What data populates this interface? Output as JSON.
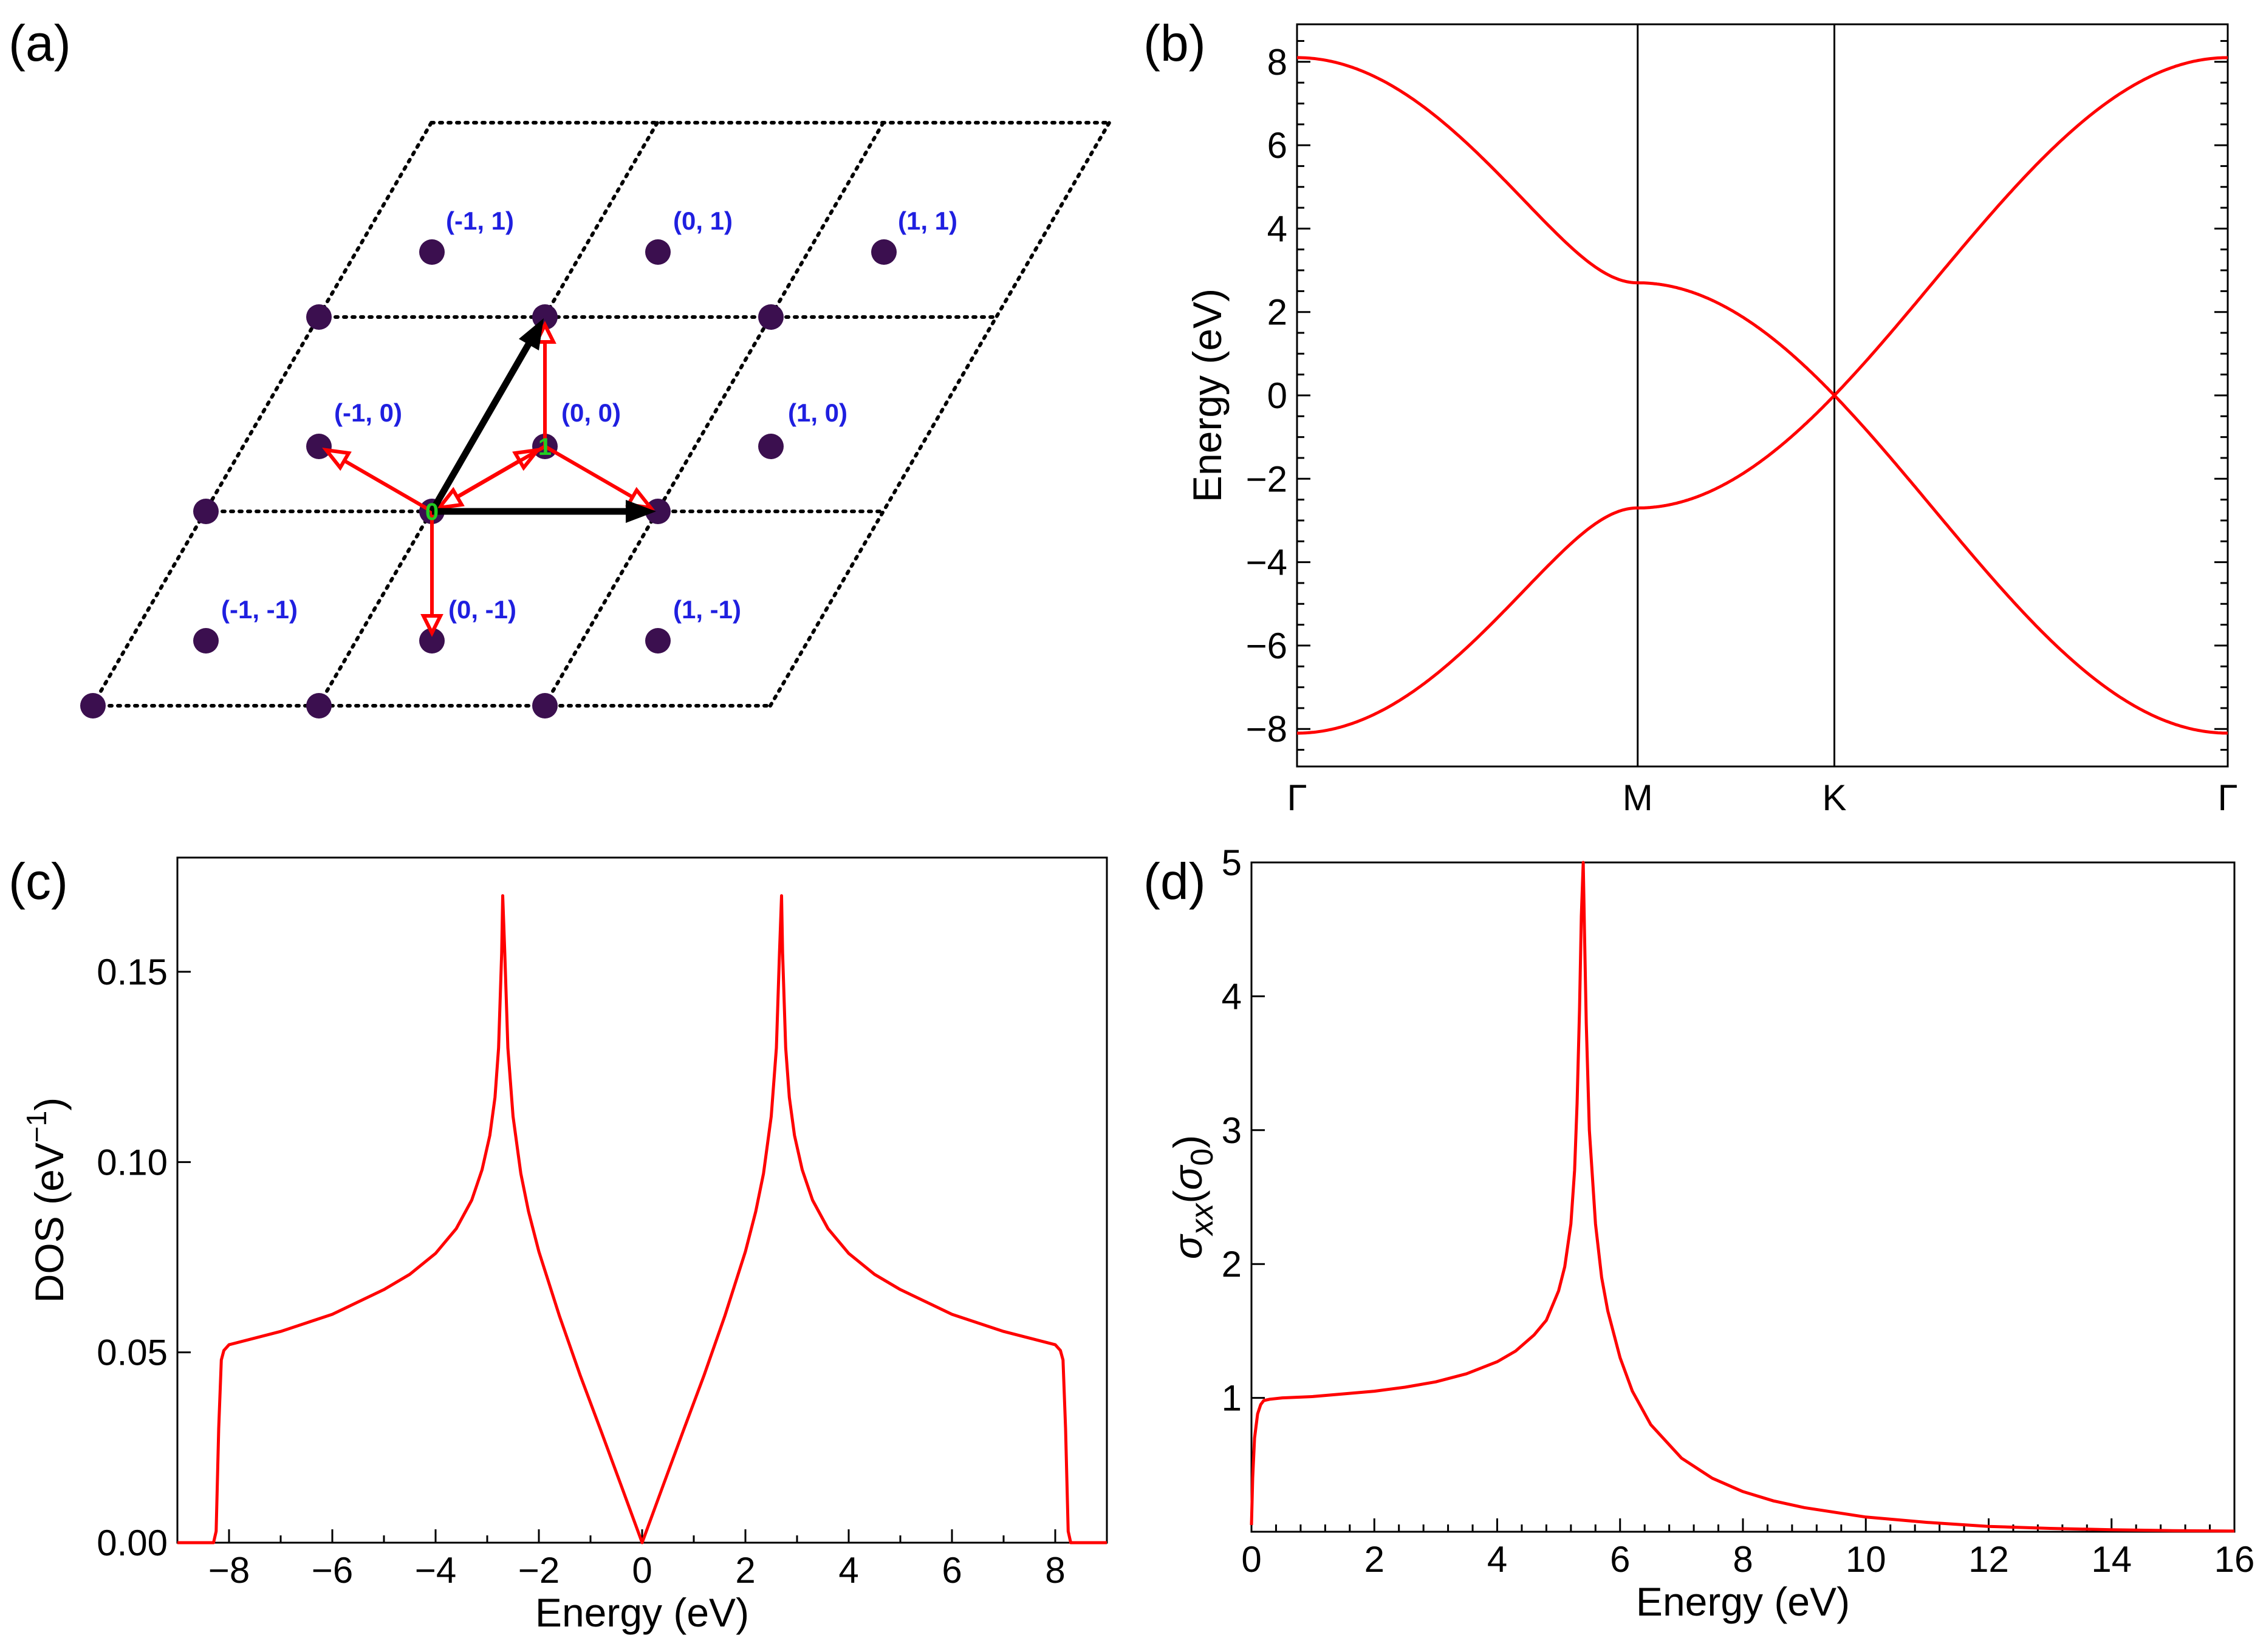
{
  "colors": {
    "curve": "#ff0000",
    "lattice_site": "#3b0f4f",
    "cell_label": "#1f1fe0",
    "site_label": "#22cc22",
    "primitive_vector": "#000000",
    "hopping_vector": "#ff0000"
  },
  "panels": {
    "a": {
      "label": "(a)"
    },
    "b": {
      "label": "(b)"
    },
    "c": {
      "label": "(c)"
    },
    "d": {
      "label": "(d)"
    }
  },
  "chart_data": [
    {
      "id": "a",
      "type": "diagram",
      "title": "",
      "cell_indices": [
        "(-1, 1)",
        "(0, 1)",
        "(1, 1)",
        "(-1, 0)",
        "(0, 0)",
        "(1, 0)",
        "(-1, -1)",
        "(0, -1)",
        "(1, -1)"
      ],
      "site_labels": [
        "0",
        "1"
      ]
    },
    {
      "id": "b",
      "type": "line",
      "title": "",
      "xlabel": "",
      "ylabel": "Energy (eV)",
      "x_ticks": [
        "Γ",
        "M",
        "K",
        "Γ"
      ],
      "x_tick_positions": [
        0,
        1.0,
        1.5774,
        2.7321
      ],
      "xlim": [
        0,
        2.7321
      ],
      "ylim": [
        -8.9,
        8.9
      ],
      "y_ticks": [
        -8,
        -6,
        -4,
        -2,
        0,
        2,
        4,
        6,
        8
      ],
      "vlines": [
        1.0,
        1.5774
      ],
      "model": {
        "t": 2.7,
        "a": 1.0
      },
      "series": [
        {
          "band": "upper",
          "values_at_high_symmetry": [
            8.1,
            2.7,
            0.0,
            8.1
          ]
        },
        {
          "band": "lower",
          "values_at_high_symmetry": [
            -8.1,
            -2.7,
            0.0,
            -8.1
          ]
        }
      ]
    },
    {
      "id": "c",
      "type": "line",
      "title": "",
      "xlabel": "Energy (eV)",
      "ylabel": "DOS (eV",
      "ylabel_sup": "−1",
      "ylabel_close": ")",
      "xlim": [
        -9,
        9
      ],
      "ylim": [
        0,
        0.18
      ],
      "x_ticks": [
        -8,
        -6,
        -4,
        -2,
        0,
        2,
        4,
        6,
        8
      ],
      "y_ticks": [
        0.0,
        0.05,
        0.1,
        0.15
      ],
      "y_tick_labels": [
        "0.00",
        "0.05",
        "0.10",
        "0.15"
      ],
      "series": [
        {
          "x": [
            -9.0,
            -8.3,
            -8.25,
            -8.2,
            -8.15,
            -8.1,
            -8.0,
            -7.0,
            -6.0,
            -5.0,
            -4.5,
            -4.0,
            -3.6,
            -3.3,
            -3.1,
            -2.95,
            -2.85,
            -2.78,
            -2.72,
            -2.7,
            -2.66,
            -2.6,
            -2.5,
            -2.35,
            -2.2,
            -2.0,
            -1.6,
            -1.2,
            -0.8,
            -0.4,
            0.0,
            0.4,
            0.8,
            1.2,
            1.6,
            2.0,
            2.2,
            2.35,
            2.5,
            2.6,
            2.66,
            2.7,
            2.72,
            2.78,
            2.85,
            2.95,
            3.1,
            3.3,
            3.6,
            4.0,
            4.5,
            5.0,
            6.0,
            7.0,
            8.0,
            8.1,
            8.15,
            8.2,
            8.25,
            8.3,
            9.0
          ],
          "y": [
            0.0,
            0.0,
            0.003,
            0.03,
            0.048,
            0.0505,
            0.052,
            0.0555,
            0.06,
            0.0665,
            0.0705,
            0.076,
            0.0825,
            0.09,
            0.098,
            0.107,
            0.117,
            0.13,
            0.155,
            0.17,
            0.155,
            0.13,
            0.112,
            0.097,
            0.087,
            0.0765,
            0.0595,
            0.044,
            0.0295,
            0.0148,
            0.0,
            0.0148,
            0.0295,
            0.044,
            0.0595,
            0.0765,
            0.087,
            0.097,
            0.112,
            0.13,
            0.155,
            0.17,
            0.155,
            0.13,
            0.117,
            0.107,
            0.098,
            0.09,
            0.0825,
            0.076,
            0.0705,
            0.0665,
            0.06,
            0.0555,
            0.052,
            0.0505,
            0.048,
            0.03,
            0.003,
            0.0,
            0.0
          ]
        }
      ]
    },
    {
      "id": "d",
      "type": "line",
      "title": "",
      "xlabel": "Energy (eV)",
      "ylabel_main": "σ",
      "ylabel_sub": "xx",
      "ylabel_paren": "(σ",
      "ylabel_paren_sub": "0",
      "ylabel_close": ")",
      "xlim": [
        0,
        16
      ],
      "ylim": [
        0,
        5
      ],
      "x_ticks": [
        0,
        2,
        4,
        6,
        8,
        10,
        12,
        14,
        16
      ],
      "y_ticks": [
        1,
        2,
        3,
        4,
        5
      ],
      "series": [
        {
          "x": [
            0.0,
            0.02,
            0.05,
            0.1,
            0.15,
            0.2,
            0.3,
            0.5,
            1.0,
            1.5,
            2.0,
            2.5,
            3.0,
            3.5,
            4.0,
            4.3,
            4.6,
            4.8,
            5.0,
            5.1,
            5.2,
            5.26,
            5.3,
            5.34,
            5.37,
            5.4,
            5.42,
            5.45,
            5.5,
            5.6,
            5.7,
            5.8,
            6.0,
            6.2,
            6.5,
            7.0,
            7.5,
            8.0,
            8.5,
            9.0,
            10.0,
            11.0,
            12.0,
            13.0,
            14.0,
            15.0,
            16.0
          ],
          "y": [
            0.05,
            0.4,
            0.7,
            0.88,
            0.95,
            0.98,
            0.99,
            1.0,
            1.01,
            1.03,
            1.05,
            1.08,
            1.12,
            1.18,
            1.27,
            1.35,
            1.47,
            1.58,
            1.8,
            1.98,
            2.3,
            2.7,
            3.2,
            3.9,
            4.6,
            5.0,
            4.5,
            3.8,
            3.0,
            2.3,
            1.9,
            1.65,
            1.3,
            1.05,
            0.8,
            0.55,
            0.4,
            0.3,
            0.23,
            0.18,
            0.11,
            0.07,
            0.04,
            0.025,
            0.015,
            0.008,
            0.005
          ]
        }
      ]
    }
  ]
}
